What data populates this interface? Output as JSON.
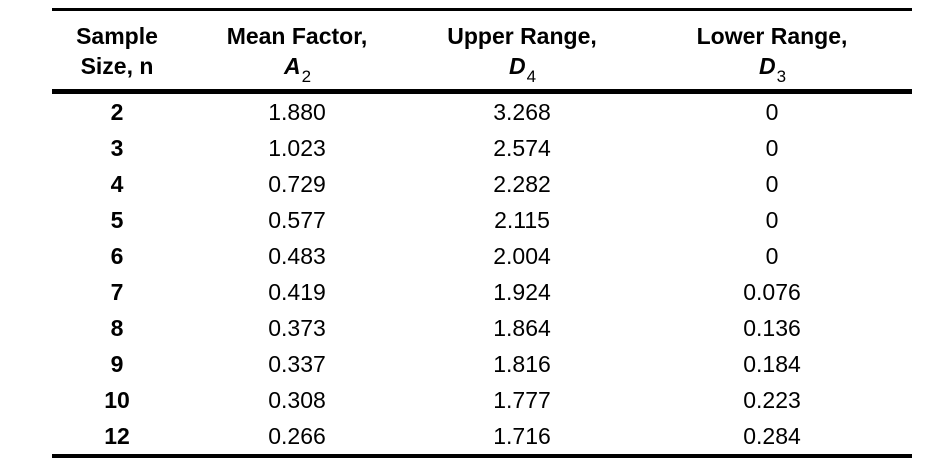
{
  "colors": {
    "background": "#ffffff",
    "text": "#000000",
    "rule": "#000000"
  },
  "table": {
    "name": "control-chart-factors",
    "columns": [
      {
        "title_line1": "Sample",
        "title_line2": "Size, n",
        "symbol": "",
        "subscript": ""
      },
      {
        "title_line1": "Mean Factor,",
        "title_line2": "",
        "symbol": "A",
        "subscript": "2"
      },
      {
        "title_line1": "Upper Range,",
        "title_line2": "",
        "symbol": "D",
        "subscript": "4"
      },
      {
        "title_line1": "Lower Range,",
        "title_line2": "",
        "symbol": "D",
        "subscript": "3"
      }
    ],
    "rows": [
      [
        "2",
        "1.880",
        "3.268",
        "0"
      ],
      [
        "3",
        "1.023",
        "2.574",
        "0"
      ],
      [
        "4",
        "0.729",
        "2.282",
        "0"
      ],
      [
        "5",
        "0.577",
        "2.115",
        "0"
      ],
      [
        "6",
        "0.483",
        "2.004",
        "0"
      ],
      [
        "7",
        "0.419",
        "1.924",
        "0.076"
      ],
      [
        "8",
        "0.373",
        "1.864",
        "0.136"
      ],
      [
        "9",
        "0.337",
        "1.816",
        "0.184"
      ],
      [
        "10",
        "0.308",
        "1.777",
        "0.223"
      ],
      [
        "12",
        "0.266",
        "1.716",
        "0.284"
      ]
    ]
  }
}
